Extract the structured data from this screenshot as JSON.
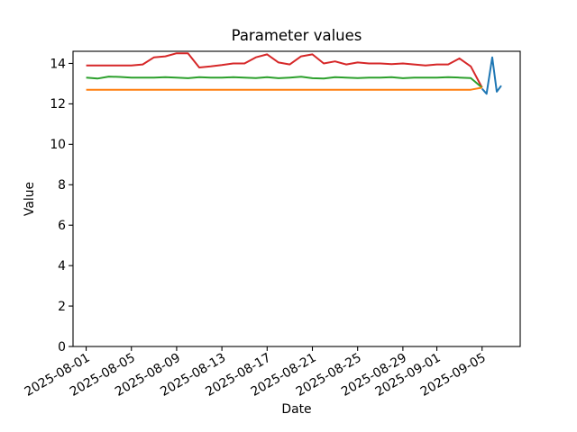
{
  "figure": {
    "background": "#ffffff"
  },
  "chart_data": {
    "type": "line",
    "title": "Parameter values",
    "xlabel": "Date",
    "ylabel": "Value",
    "ylim": [
      0,
      14.6
    ],
    "xlim_days_from_2025_08_01": [
      -1.16,
      38.37
    ],
    "grid": false,
    "legend": "none",
    "x_tick_rotation_deg": 30,
    "y_axis_ticks": [
      0,
      2,
      4,
      6,
      8,
      10,
      12,
      14
    ],
    "x_axis_tick_labels": [
      "2025-08-01",
      "2025-08-05",
      "2025-08-09",
      "2025-08-13",
      "2025-08-17",
      "2025-08-21",
      "2025-08-25",
      "2025-08-29",
      "2025-09-01",
      "2025-09-05"
    ],
    "x_axis_tick_day_offsets": [
      0,
      4,
      8,
      12,
      16,
      20,
      24,
      28,
      31,
      35
    ],
    "dates": [
      "2025-08-01",
      "2025-08-02",
      "2025-08-03",
      "2025-08-04",
      "2025-08-05",
      "2025-08-06",
      "2025-08-07",
      "2025-08-08",
      "2025-08-09",
      "2025-08-10",
      "2025-08-11",
      "2025-08-12",
      "2025-08-13",
      "2025-08-14",
      "2025-08-15",
      "2025-08-16",
      "2025-08-17",
      "2025-08-18",
      "2025-08-19",
      "2025-08-20",
      "2025-08-21",
      "2025-08-22",
      "2025-08-23",
      "2025-08-24",
      "2025-08-25",
      "2025-08-26",
      "2025-08-27",
      "2025-08-28",
      "2025-08-29",
      "2025-08-30",
      "2025-08-31",
      "2025-09-01",
      "2025-09-02",
      "2025-09-03",
      "2025-09-04",
      "2025-09-05"
    ],
    "series": [
      {
        "name": "red-series",
        "color": "#d62728",
        "values": [
          13.9,
          13.9,
          13.9,
          13.9,
          13.9,
          13.95,
          14.3,
          14.35,
          14.5,
          14.5,
          13.8,
          13.85,
          13.92,
          14.0,
          14.0,
          14.3,
          14.45,
          14.05,
          13.95,
          14.35,
          14.45,
          14.0,
          14.1,
          13.95,
          14.05,
          14.0,
          14.0,
          13.97,
          14.0,
          13.95,
          13.9,
          13.95,
          13.95,
          14.25,
          13.85,
          12.8
        ]
      },
      {
        "name": "green-series",
        "color": "#2ca02c",
        "values": [
          13.3,
          13.25,
          13.35,
          13.33,
          13.3,
          13.3,
          13.3,
          13.32,
          13.3,
          13.27,
          13.32,
          13.3,
          13.3,
          13.32,
          13.3,
          13.28,
          13.32,
          13.27,
          13.3,
          13.34,
          13.27,
          13.25,
          13.32,
          13.3,
          13.28,
          13.3,
          13.3,
          13.32,
          13.27,
          13.3,
          13.3,
          13.3,
          13.32,
          13.3,
          13.28,
          12.8
        ]
      },
      {
        "name": "orange-series",
        "color": "#ff7f0e",
        "values": [
          12.7,
          12.7,
          12.7,
          12.7,
          12.7,
          12.7,
          12.7,
          12.7,
          12.7,
          12.7,
          12.7,
          12.7,
          12.7,
          12.7,
          12.7,
          12.7,
          12.7,
          12.7,
          12.7,
          12.7,
          12.7,
          12.7,
          12.7,
          12.7,
          12.7,
          12.7,
          12.7,
          12.7,
          12.7,
          12.7,
          12.7,
          12.7,
          12.7,
          12.7,
          12.7,
          12.8
        ]
      },
      {
        "name": "blue-series",
        "color": "#1f77b4",
        "approx_date_range": "2025-09-05 to 2025-09-07",
        "day_offsets": [
          35.0,
          35.4,
          35.9,
          36.3,
          36.7
        ],
        "values": [
          12.75,
          12.5,
          14.3,
          12.6,
          12.9
        ]
      }
    ]
  }
}
